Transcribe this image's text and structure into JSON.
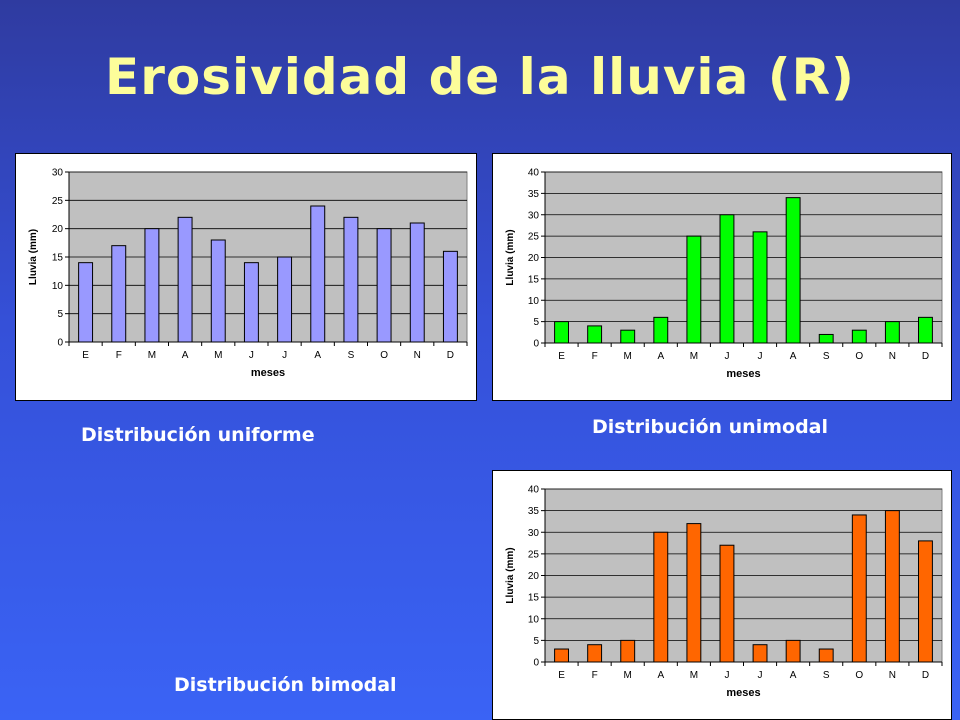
{
  "slide": {
    "title": "Erosividad de la lluvia (R)",
    "captions": [
      "Distribución uniforme",
      "Distribución unimodal",
      "Distribución bimodal"
    ]
  },
  "chart_data": [
    {
      "type": "bar",
      "categories": [
        "E",
        "F",
        "M",
        "A",
        "M",
        "J",
        "J",
        "A",
        "S",
        "O",
        "N",
        "D"
      ],
      "values": [
        14,
        17,
        20,
        22,
        18,
        14,
        15,
        24,
        22,
        20,
        21,
        16
      ],
      "xlabel": "meses",
      "ylabel": "Lluvia (mm)",
      "ylim": [
        0,
        30
      ],
      "yticks": [
        0,
        5,
        10,
        15,
        20,
        25,
        30
      ],
      "grid": true,
      "color": "#9999ff",
      "plot_bg": "#c0c0c0"
    },
    {
      "type": "bar",
      "categories": [
        "E",
        "F",
        "M",
        "A",
        "M",
        "J",
        "J",
        "A",
        "S",
        "O",
        "N",
        "D"
      ],
      "values": [
        5,
        4,
        3,
        6,
        25,
        30,
        26,
        34,
        2,
        3,
        5,
        6
      ],
      "xlabel": "meses",
      "ylabel": "Lluvia (mm)",
      "ylim": [
        0,
        40
      ],
      "yticks": [
        0,
        5,
        10,
        15,
        20,
        25,
        30,
        35,
        40
      ],
      "grid": true,
      "color": "#00ff00",
      "plot_bg": "#c0c0c0"
    },
    {
      "type": "bar",
      "categories": [
        "E",
        "F",
        "M",
        "A",
        "M",
        "J",
        "J",
        "A",
        "S",
        "O",
        "N",
        "D"
      ],
      "values": [
        3,
        4,
        5,
        30,
        32,
        27,
        4,
        5,
        3,
        34,
        35,
        28
      ],
      "xlabel": "meses",
      "ylabel": "Lluvia (mm)",
      "ylim": [
        0,
        40
      ],
      "yticks": [
        0,
        5,
        10,
        15,
        20,
        25,
        30,
        35,
        40
      ],
      "grid": true,
      "color": "#ff6600",
      "plot_bg": "#c0c0c0"
    }
  ]
}
